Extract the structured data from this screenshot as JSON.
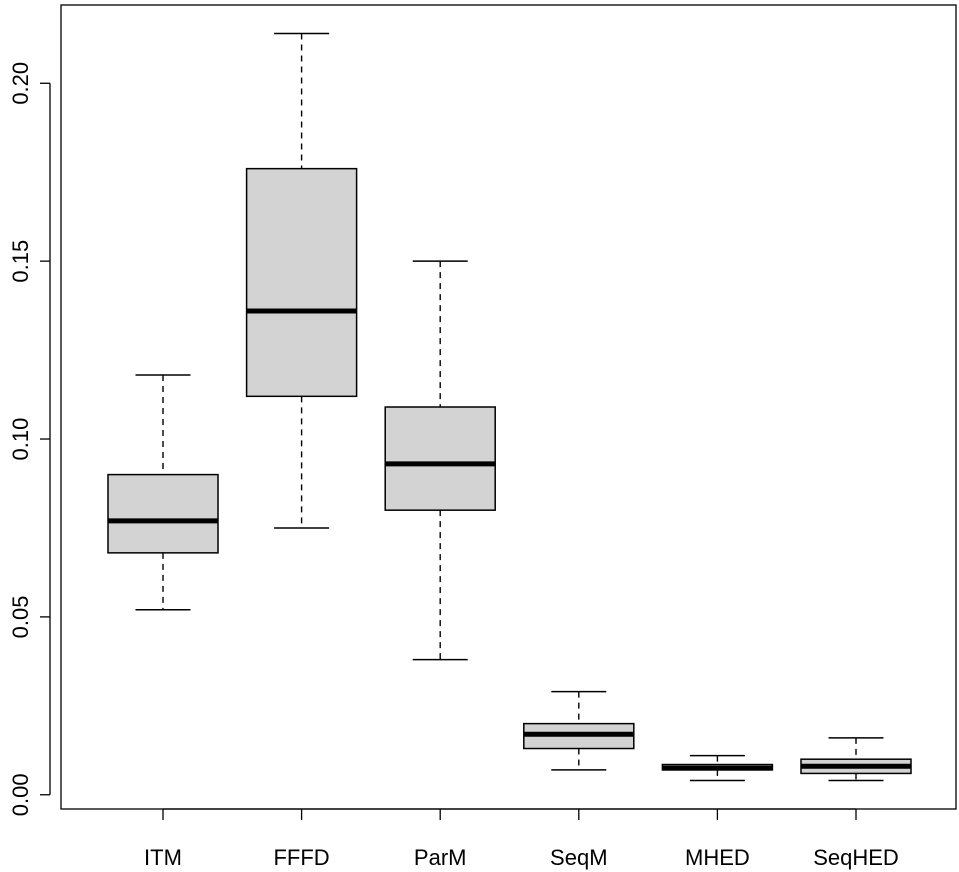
{
  "chart_data": {
    "type": "boxplot",
    "title": "",
    "xlabel": "",
    "ylabel": "",
    "ylim": [
      -0.004,
      0.222
    ],
    "yticks": [
      0.0,
      0.05,
      0.1,
      0.15,
      0.2
    ],
    "ytick_labels": [
      "0.00",
      "0.05",
      "0.10",
      "0.15",
      "0.20"
    ],
    "grid": false,
    "box_fill": "#d3d3d3",
    "categories": [
      "ITM",
      "FFFD",
      "ParM",
      "SeqM",
      "MHED",
      "SeqHED"
    ],
    "boxes": [
      {
        "name": "ITM",
        "whisker_low": 0.052,
        "q1": 0.068,
        "median": 0.077,
        "q3": 0.09,
        "whisker_high": 0.118
      },
      {
        "name": "FFFD",
        "whisker_low": 0.075,
        "q1": 0.112,
        "median": 0.136,
        "q3": 0.176,
        "whisker_high": 0.214
      },
      {
        "name": "ParM",
        "whisker_low": 0.038,
        "q1": 0.08,
        "median": 0.093,
        "q3": 0.109,
        "whisker_high": 0.15
      },
      {
        "name": "SeqM",
        "whisker_low": 0.007,
        "q1": 0.013,
        "median": 0.017,
        "q3": 0.02,
        "whisker_high": 0.029
      },
      {
        "name": "MHED",
        "whisker_low": 0.004,
        "q1": 0.007,
        "median": 0.0075,
        "q3": 0.0085,
        "whisker_high": 0.011
      },
      {
        "name": "SeqHED",
        "whisker_low": 0.004,
        "q1": 0.006,
        "median": 0.008,
        "q3": 0.01,
        "whisker_high": 0.016
      }
    ]
  }
}
